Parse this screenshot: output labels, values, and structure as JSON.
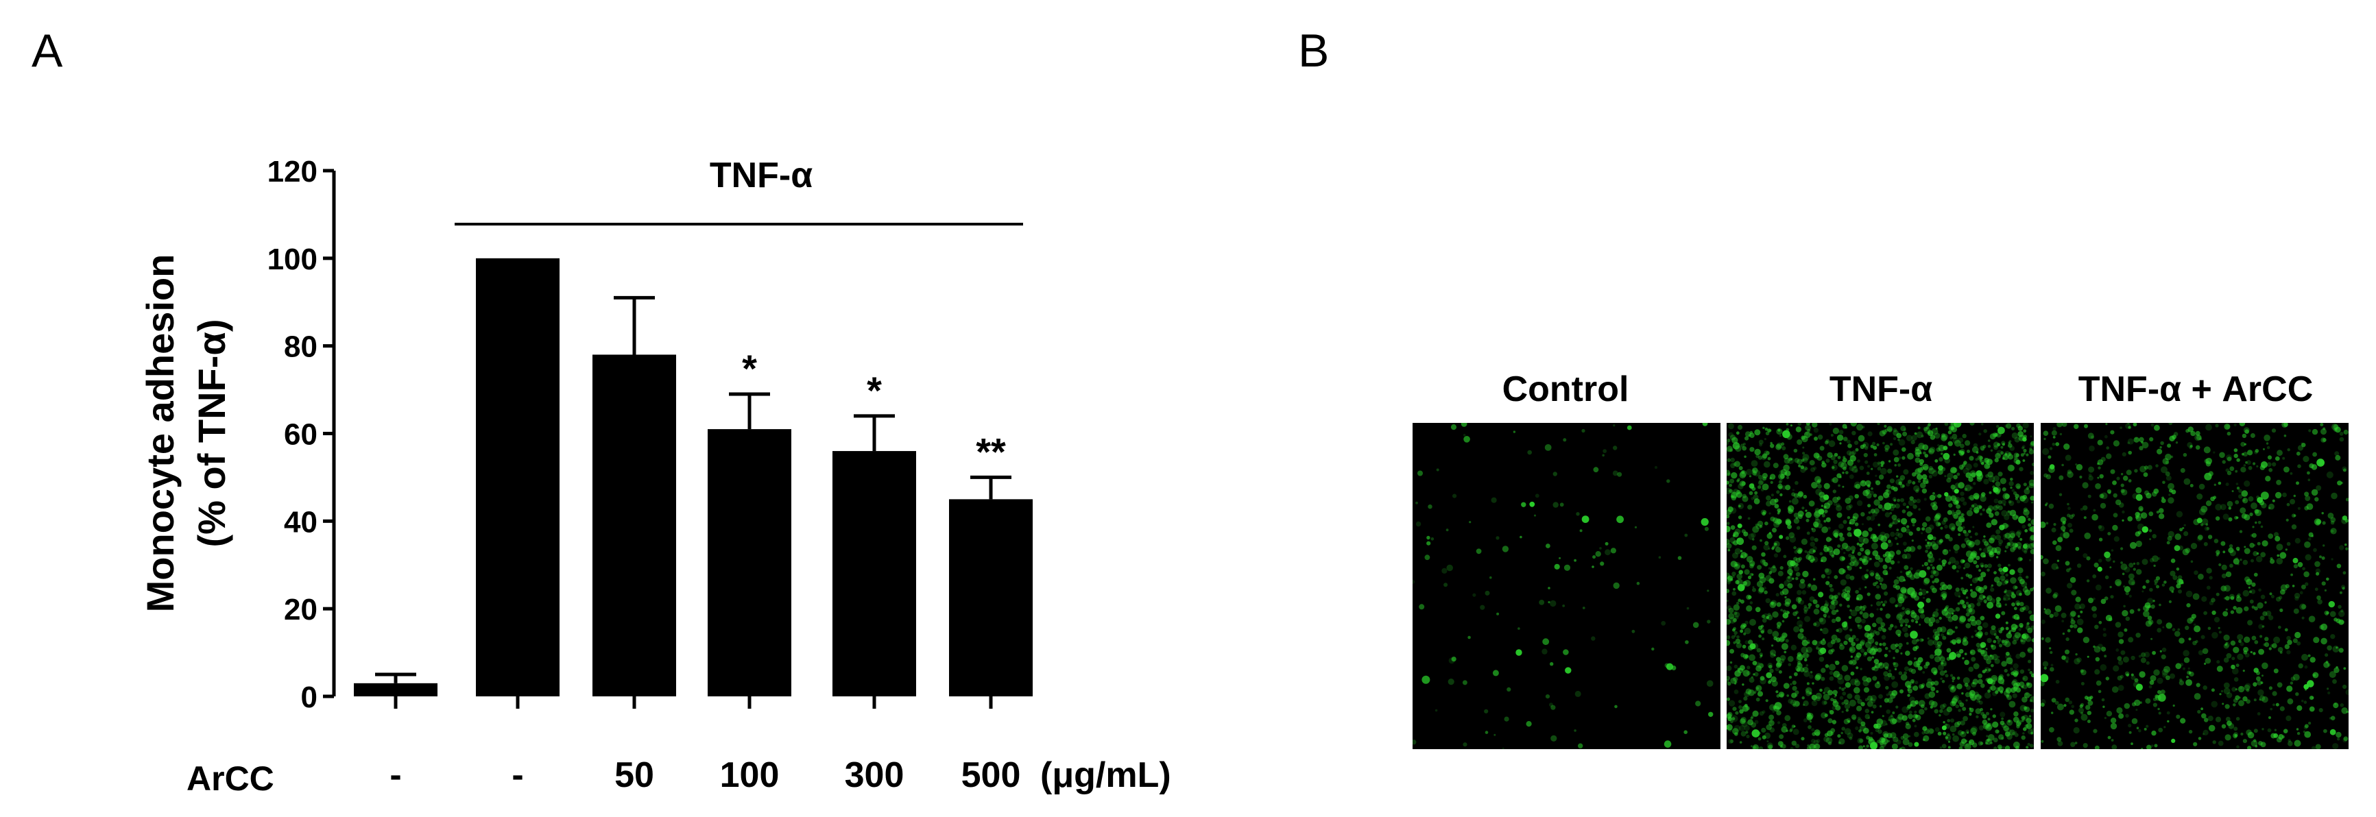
{
  "panels": {
    "a_label": "A",
    "b_label": "B"
  },
  "chart_data": {
    "type": "bar",
    "ylabel_line1": "Monocyte adhesion",
    "ylabel_line2": "(% of TNF-α)",
    "ylim": [
      0,
      120
    ],
    "yticks": [
      "0",
      "20",
      "40",
      "60",
      "80",
      "100",
      "120"
    ],
    "treatment_bracket_label": "TNF-α",
    "row_label": "ArCC",
    "unit": "(μg/mL)",
    "categories": [
      "-",
      "-",
      "50",
      "100",
      "300",
      "500"
    ],
    "values": [
      3,
      100,
      78,
      61,
      56,
      45
    ],
    "errors": [
      2,
      0,
      13,
      8,
      8,
      5
    ],
    "significance": [
      "",
      "",
      "",
      "*",
      "*",
      "**"
    ],
    "bar_color": "#000000"
  },
  "microscopy": {
    "labels": [
      "Control",
      "TNF-α",
      "TNF-α + ArCC"
    ],
    "background_color": "#000000",
    "fluorescence_color": "#2bd12b"
  }
}
